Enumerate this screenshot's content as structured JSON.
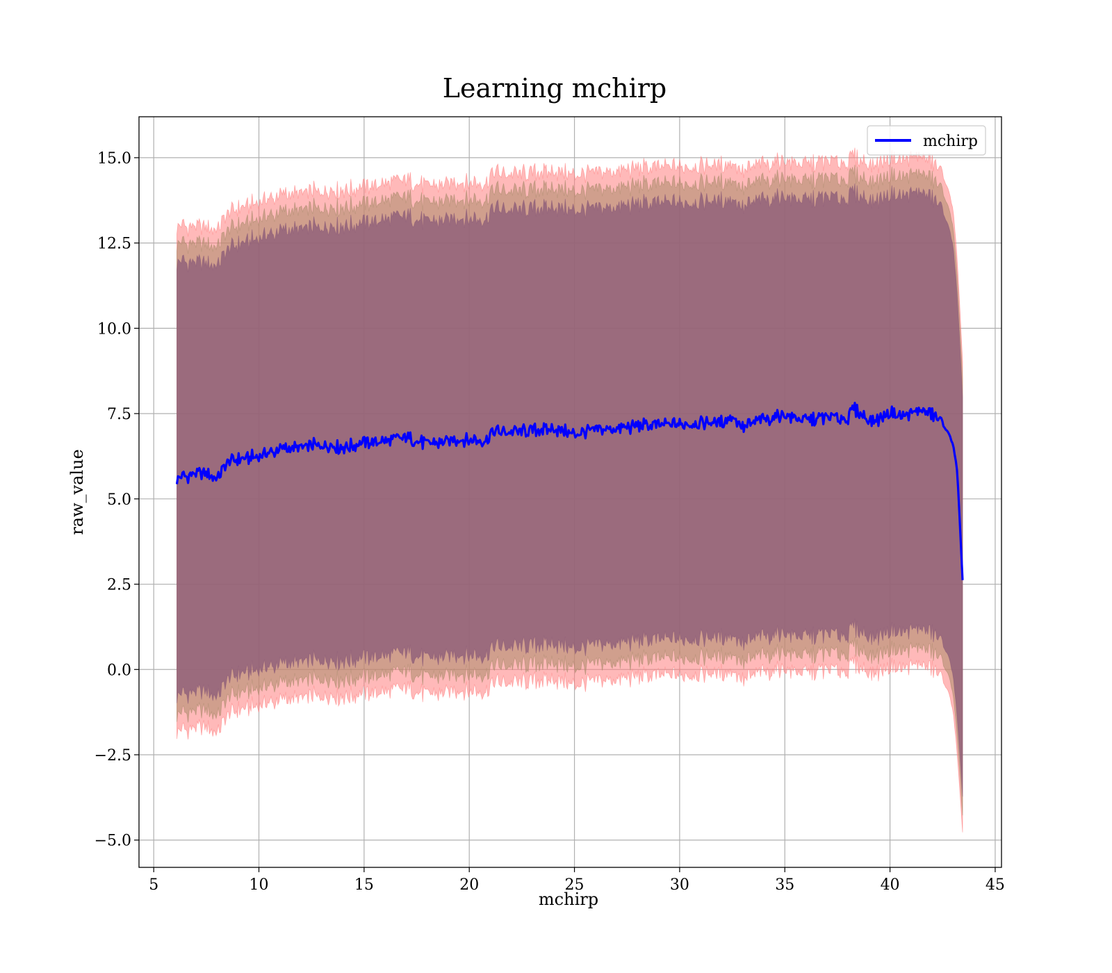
{
  "chart_data": {
    "type": "area",
    "title": "Learning mchirp",
    "xlabel": "mchirp",
    "ylabel": "raw_value",
    "xlim": [
      4.3,
      45.3
    ],
    "ylim": [
      -5.8,
      16.2
    ],
    "xticks": [
      5,
      10,
      15,
      20,
      25,
      30,
      35,
      40,
      45
    ],
    "xtick_labels": [
      "5",
      "10",
      "15",
      "20",
      "25",
      "30",
      "35",
      "40",
      "45"
    ],
    "yticks": [
      -5.0,
      -2.5,
      0.0,
      2.5,
      5.0,
      7.5,
      10.0,
      12.5,
      15.0
    ],
    "ytick_labels": [
      "−5.0",
      "−2.5",
      "0.0",
      "2.5",
      "5.0",
      "7.5",
      "10.0",
      "12.5",
      "15.0"
    ],
    "grid": true,
    "legend": {
      "placement": "top-right",
      "entries": [
        "mchirp"
      ]
    },
    "series": [
      {
        "name": "mchirp",
        "color": "#0000ff",
        "x": [
          6.1,
          7.0,
          7.5,
          8.0,
          8.5,
          9.0,
          10.0,
          11.0,
          12.0,
          13.0,
          14.0,
          15.0,
          16.0,
          17.0,
          18.0,
          19.0,
          20.0,
          20.8,
          21.0,
          22.0,
          23.0,
          24.0,
          25.0,
          26.0,
          27.0,
          28.0,
          29.0,
          30.0,
          31.0,
          32.0,
          32.5,
          33.0,
          34.0,
          35.0,
          36.0,
          37.0,
          38.0,
          38.3,
          39.0,
          39.5,
          40.0,
          40.5,
          41.0,
          41.5,
          42.0,
          42.5,
          42.8,
          43.0,
          43.2,
          43.45
        ],
        "y": [
          5.6,
          5.75,
          5.7,
          5.6,
          6.1,
          6.15,
          6.25,
          6.45,
          6.5,
          6.6,
          6.5,
          6.65,
          6.7,
          6.8,
          6.6,
          6.7,
          6.75,
          6.7,
          6.95,
          6.95,
          7.0,
          7.05,
          6.9,
          7.05,
          7.05,
          7.15,
          7.15,
          7.2,
          7.25,
          7.25,
          7.45,
          7.1,
          7.35,
          7.45,
          7.3,
          7.4,
          7.35,
          7.65,
          7.3,
          7.35,
          7.55,
          7.4,
          7.5,
          7.6,
          7.5,
          7.2,
          6.9,
          6.6,
          5.8,
          2.6
        ],
        "upper": [
          13.0,
          13.0,
          12.9,
          12.9,
          13.4,
          13.5,
          13.7,
          13.9,
          13.95,
          14.05,
          14.05,
          14.15,
          14.25,
          14.35,
          14.15,
          14.25,
          14.3,
          14.25,
          14.55,
          14.5,
          14.55,
          14.6,
          14.5,
          14.6,
          14.6,
          14.7,
          14.7,
          14.75,
          14.8,
          14.8,
          14.9,
          14.6,
          14.85,
          14.9,
          14.8,
          14.9,
          14.85,
          15.05,
          14.8,
          14.85,
          15.0,
          14.9,
          15.0,
          15.05,
          14.9,
          14.5,
          14.0,
          13.5,
          12.0,
          9.0
        ],
        "lower": [
          -1.8,
          -1.7,
          -1.75,
          -1.85,
          -1.3,
          -1.2,
          -1.05,
          -0.9,
          -0.85,
          -0.75,
          -0.8,
          -0.7,
          -0.65,
          -0.55,
          -0.75,
          -0.65,
          -0.6,
          -0.65,
          -0.4,
          -0.4,
          -0.35,
          -0.3,
          -0.45,
          -0.3,
          -0.3,
          -0.2,
          -0.2,
          -0.15,
          -0.1,
          -0.1,
          0.0,
          -0.3,
          -0.05,
          0.0,
          -0.1,
          0.0,
          -0.05,
          0.2,
          -0.1,
          -0.05,
          0.1,
          0.0,
          0.1,
          0.15,
          0.05,
          -0.3,
          -0.7,
          -1.2,
          -2.5,
          -4.8
        ]
      }
    ],
    "bands": [
      {
        "name": "",
        "color": "#ff7f7f",
        "opacity": 0.55,
        "role": "outer",
        "offset_upper": 0.0,
        "offset_lower": 0.0
      },
      {
        "name": "",
        "color": "#a98a6a",
        "opacity": 0.55,
        "role": "middle",
        "offset_upper": -0.5,
        "offset_lower": 0.5
      },
      {
        "name": "",
        "color": "#8a5a78",
        "opacity": 0.75,
        "role": "inner",
        "offset_upper": -1.05,
        "offset_lower": 1.05
      }
    ]
  }
}
